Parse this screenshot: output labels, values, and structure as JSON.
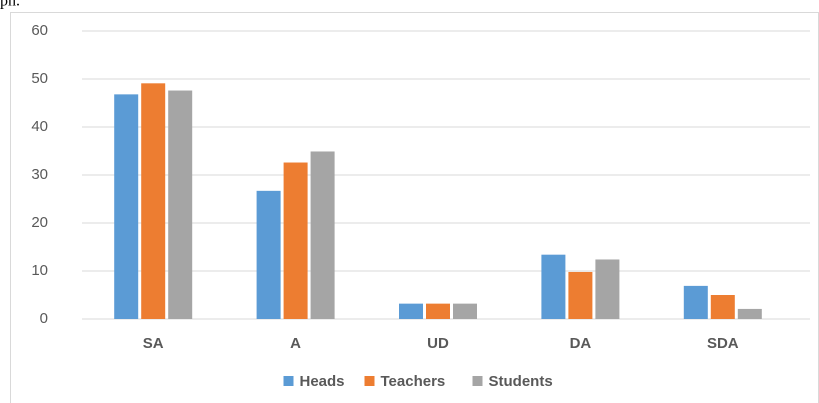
{
  "note": "ph.",
  "chart_data": {
    "type": "bar",
    "categories": [
      "SA",
      "A",
      "UD",
      "DA",
      "SDA"
    ],
    "series": [
      {
        "name": "Heads",
        "color": "#5b9bd5",
        "values": [
          46.8,
          26.7,
          3.2,
          13.4,
          6.9
        ]
      },
      {
        "name": "Teachers",
        "color": "#ed7d31",
        "values": [
          49.1,
          32.6,
          3.2,
          9.8,
          5.0
        ]
      },
      {
        "name": "Students",
        "color": "#a5a5a5",
        "values": [
          47.6,
          34.9,
          3.2,
          12.4,
          2.1
        ]
      }
    ],
    "ylim": [
      0,
      60
    ],
    "yticks": [
      0,
      10,
      20,
      30,
      40,
      50,
      60
    ],
    "grid": true,
    "legend": "bottom"
  }
}
